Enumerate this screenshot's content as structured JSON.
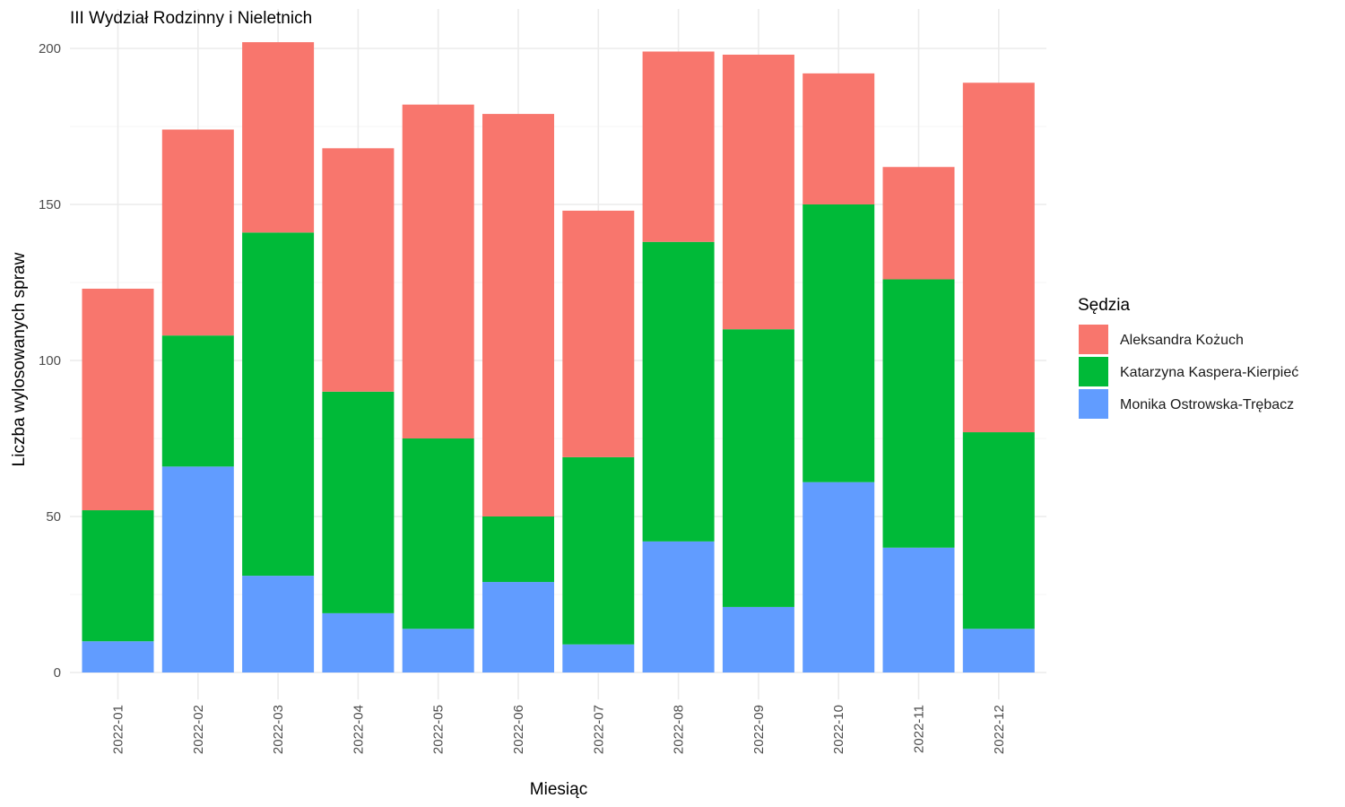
{
  "chart_data": {
    "type": "bar",
    "stacked": true,
    "title": "III Wydział Rodzinny i Nieletnich",
    "xlabel": "Miesiąc",
    "ylabel": "Liczba wylosowanych spraw",
    "ylim": [
      0,
      210
    ],
    "yticks": [
      0,
      50,
      100,
      150,
      200
    ],
    "grid": true,
    "legend_position": "right",
    "legend_title": "Sędzia",
    "categories": [
      "2022-01",
      "2022-02",
      "2022-03",
      "2022-04",
      "2022-05",
      "2022-06",
      "2022-07",
      "2022-08",
      "2022-09",
      "2022-10",
      "2022-11",
      "2022-12"
    ],
    "series": [
      {
        "name": "Monika Ostrowska-Trębacz",
        "color": "#619CFF",
        "values": [
          10,
          66,
          31,
          19,
          14,
          29,
          9,
          42,
          21,
          61,
          40,
          14
        ]
      },
      {
        "name": "Katarzyna Kaspera-Kierpieć",
        "color": "#00BA38",
        "values": [
          42,
          42,
          110,
          71,
          61,
          21,
          60,
          96,
          89,
          89,
          86,
          63
        ]
      },
      {
        "name": "Aleksandra Kożuch",
        "color": "#F8766D",
        "values": [
          71,
          66,
          61,
          78,
          107,
          129,
          79,
          61,
          88,
          42,
          36,
          112
        ]
      }
    ],
    "legend_order": [
      "Aleksandra Kożuch",
      "Katarzyna Kaspera-Kierpieć",
      "Monika Ostrowska-Trębacz"
    ]
  }
}
